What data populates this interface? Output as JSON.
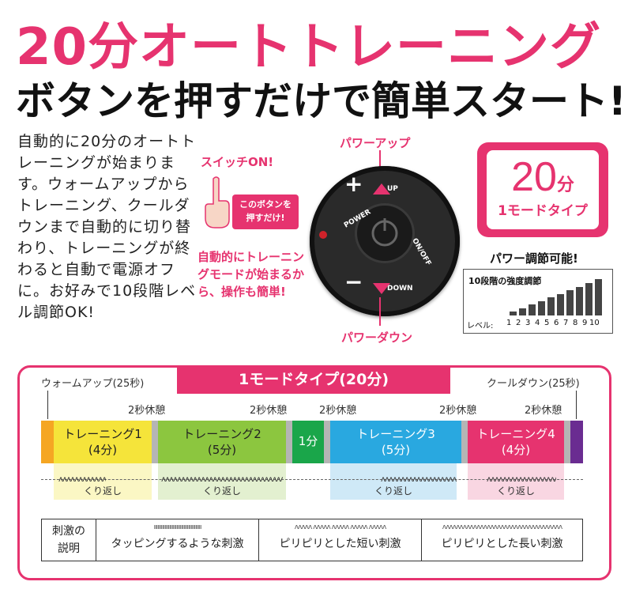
{
  "headline": "20分オートトレーニング",
  "subheadline": "ボタンを押すだけで簡単スタート!",
  "description": "自動的に20分のオートトレーニングが始まります。ウォームアップからトレーニング、クールダウンまで自動的に切り替わり、トレーニングが終わると自動で電源オフに。お好みで10段階レベル調節OK!",
  "device": {
    "switch_on_label": "スイッチON!",
    "press_note_line1": "このボタンを",
    "press_note_line2": "押すだけ!",
    "power_up_label": "パワーアップ",
    "power_down_label": "パワーダウン",
    "up_text": "UP",
    "down_text": "DOWN",
    "power_text": "POWER",
    "onoff_text": "ON/OFF",
    "plus": "+",
    "minus": "−",
    "auto_note": "自動的にトレーニングモードが始まるから、操作も簡単!"
  },
  "mode_box": {
    "minutes_num": "20",
    "minutes_unit": "分",
    "type_label": "1モードタイプ"
  },
  "power_adjust": {
    "label": "パワー調節可能!",
    "chart_title": "10段階の強度調節",
    "level_prefix": "レベル:",
    "levels": [
      "1",
      "2",
      "3",
      "4",
      "5",
      "6",
      "7",
      "8",
      "9",
      "10"
    ]
  },
  "timeline": {
    "banner": "1モードタイプ(20分)",
    "warmup": "ウォームアップ(25秒)",
    "cooldown": "クールダウン(25秒)",
    "rest_labels": [
      "2秒休憩",
      "2秒休憩",
      "2秒休憩",
      "2秒休憩",
      "2秒休憩"
    ],
    "segments": [
      {
        "line1": "トレーニング1",
        "line2": "(4分)",
        "color": "#f5e43a"
      },
      {
        "line1": "トレーニング2",
        "line2": "(5分)",
        "color": "#8cc63f"
      },
      {
        "line1": "1分",
        "line2": "",
        "color": "#1aa64a"
      },
      {
        "line1": "トレーニング3",
        "line2": "(5分)",
        "color": "#29a8e0"
      },
      {
        "line1": "トレーニング4",
        "line2": "(4分)",
        "color": "#e6336f"
      }
    ],
    "warmup_color": "#f5a623",
    "cooldown_color": "#6a2c91",
    "repeat_label": "くり返し",
    "wave_text": "ʌʌʌʌʌʌʌʌʌʌʌʌʌʌʌʌʌʌʌʌʌʌʌʌʌʌʌʌʌʌʌʌʌʌʌʌʌʌʌʌʌʌʌʌʌʌ"
  },
  "legend": {
    "header_line1": "刺激の",
    "header_line2": "説明",
    "items": [
      {
        "wave": "ıııııııııııııııııııııııııııııııııııııııı",
        "label": "タッピングするような刺激"
      },
      {
        "wave": "ʌʌʌʌʌ ʌʌʌʌʌ ʌʌʌʌʌ ʌʌʌʌʌ ʌʌʌʌʌ",
        "label": "ピリピリとした短い刺激"
      },
      {
        "wave": "ʌʌʌʌʌʌʌʌʌʌʌʌʌʌʌʌʌʌʌʌʌʌʌʌʌʌʌʌʌʌʌʌʌʌʌ",
        "label": "ピリピリとした長い刺激"
      }
    ]
  }
}
